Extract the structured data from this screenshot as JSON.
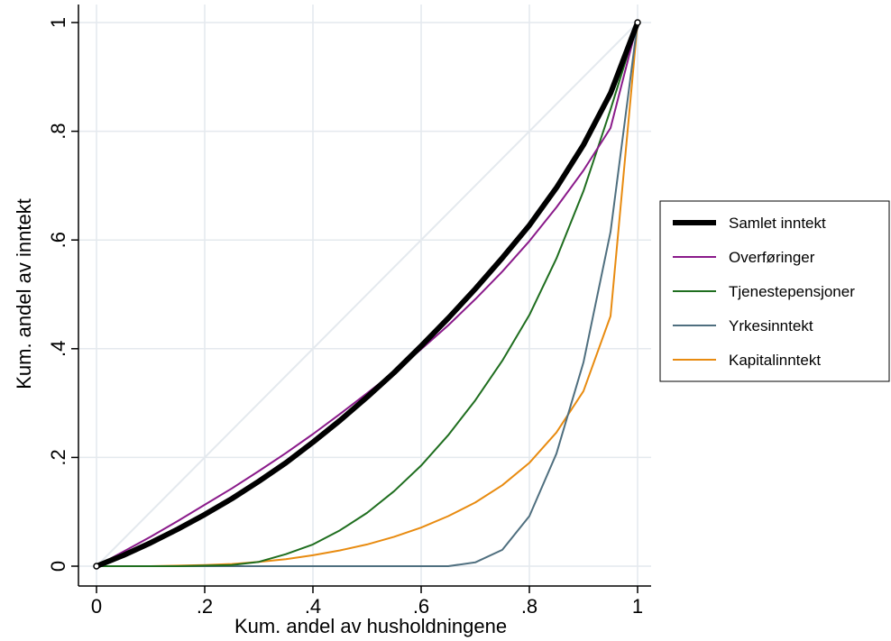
{
  "chart_data": {
    "type": "line",
    "xlabel": "Kum. andel av husholdningene",
    "ylabel": "Kum. andel av inntekt",
    "xlim": [
      0,
      1
    ],
    "ylim": [
      0,
      1
    ],
    "x_ticks": [
      {
        "value": 0,
        "label": "0"
      },
      {
        "value": 0.2,
        "label": ".2"
      },
      {
        "value": 0.4,
        "label": ".4"
      },
      {
        "value": 0.6,
        "label": ".6"
      },
      {
        "value": 0.8,
        "label": ".8"
      },
      {
        "value": 1,
        "label": "1"
      }
    ],
    "y_ticks": [
      {
        "value": 0,
        "label": "0"
      },
      {
        "value": 0.2,
        "label": ".2"
      },
      {
        "value": 0.4,
        "label": ".4"
      },
      {
        "value": 0.6,
        "label": ".6"
      },
      {
        "value": 0.8,
        "label": ".8"
      },
      {
        "value": 1,
        "label": "1"
      }
    ],
    "grid": true,
    "legend_position": "right",
    "equality_line": {
      "x": [
        0,
        1
      ],
      "y": [
        0,
        1
      ],
      "color": "#e4e9ee"
    },
    "series": [
      {
        "name": "Samlet inntekt",
        "color": "#000000",
        "bold": true,
        "x": [
          0,
          0.05,
          0.1,
          0.15,
          0.2,
          0.25,
          0.3,
          0.35,
          0.4,
          0.45,
          0.5,
          0.55,
          0.6,
          0.65,
          0.7,
          0.75,
          0.8,
          0.85,
          0.9,
          0.95,
          1
        ],
        "y": [
          0,
          0.02,
          0.043,
          0.068,
          0.095,
          0.124,
          0.156,
          0.19,
          0.228,
          0.268,
          0.311,
          0.356,
          0.405,
          0.456,
          0.51,
          0.567,
          0.627,
          0.696,
          0.775,
          0.87,
          1
        ]
      },
      {
        "name": "Overføringer",
        "color": "#8a1a8a",
        "bold": false,
        "x": [
          0,
          0.05,
          0.1,
          0.15,
          0.2,
          0.25,
          0.3,
          0.35,
          0.4,
          0.45,
          0.5,
          0.55,
          0.6,
          0.65,
          0.7,
          0.75,
          0.8,
          0.85,
          0.9,
          0.95,
          1
        ],
        "y": [
          0,
          0.027,
          0.054,
          0.083,
          0.113,
          0.143,
          0.175,
          0.208,
          0.243,
          0.28,
          0.318,
          0.357,
          0.399,
          0.443,
          0.491,
          0.542,
          0.598,
          0.66,
          0.728,
          0.806,
          1
        ]
      },
      {
        "name": "Tjenestepensjoner",
        "color": "#1f6e1f",
        "bold": false,
        "x": [
          0,
          0.05,
          0.1,
          0.15,
          0.2,
          0.25,
          0.3,
          0.35,
          0.4,
          0.45,
          0.5,
          0.55,
          0.6,
          0.65,
          0.7,
          0.75,
          0.8,
          0.85,
          0.9,
          0.95,
          1
        ],
        "y": [
          0,
          0,
          0,
          0,
          0.001,
          0.002,
          0.008,
          0.022,
          0.04,
          0.066,
          0.098,
          0.138,
          0.185,
          0.241,
          0.305,
          0.378,
          0.462,
          0.566,
          0.69,
          0.84,
          1
        ]
      },
      {
        "name": "Yrkesinntekt",
        "color": "#4f6f7f",
        "bold": false,
        "x": [
          0,
          0.05,
          0.1,
          0.15,
          0.2,
          0.25,
          0.3,
          0.35,
          0.4,
          0.45,
          0.5,
          0.55,
          0.6,
          0.65,
          0.7,
          0.75,
          0.8,
          0.85,
          0.9,
          0.95,
          1
        ],
        "y": [
          0,
          0,
          0,
          0,
          0,
          0,
          0,
          0,
          0,
          0,
          0,
          0,
          0,
          0,
          0.007,
          0.03,
          0.092,
          0.207,
          0.375,
          0.615,
          1
        ]
      },
      {
        "name": "Kapitalinntekt",
        "color": "#e88b10",
        "bold": false,
        "x": [
          0,
          0.05,
          0.1,
          0.15,
          0.2,
          0.25,
          0.3,
          0.35,
          0.4,
          0.45,
          0.5,
          0.55,
          0.6,
          0.65,
          0.7,
          0.75,
          0.8,
          0.85,
          0.9,
          0.95,
          1
        ],
        "y": [
          0,
          0,
          0,
          0.001,
          0.002,
          0.004,
          0.008,
          0.013,
          0.02,
          0.029,
          0.04,
          0.054,
          0.071,
          0.092,
          0.117,
          0.149,
          0.19,
          0.246,
          0.322,
          0.46,
          1
        ]
      }
    ]
  }
}
